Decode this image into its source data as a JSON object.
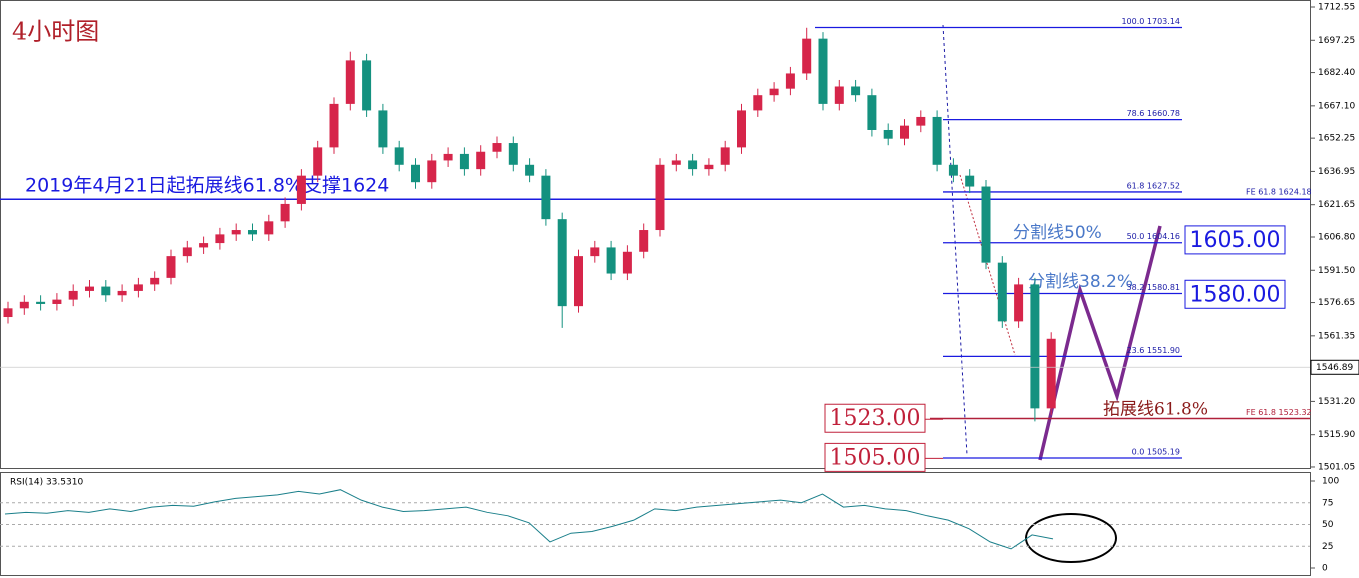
{
  "chart_data": {
    "type": "candlestick",
    "title": "4小时图",
    "up_color": "#d6254a",
    "down_color": "#14917f",
    "open": [
      1570,
      1574,
      1577,
      1576,
      1578,
      1582,
      1584,
      1580,
      1582,
      1585,
      1588,
      1598,
      1602,
      1604,
      1608,
      1610,
      1608,
      1614,
      1622,
      1635,
      1648,
      1668,
      1688,
      1665,
      1648,
      1640,
      1632,
      1642,
      1645,
      1638,
      1646,
      1650,
      1640,
      1635,
      1615,
      1575,
      1598,
      1602,
      1590,
      1600,
      1610,
      1640,
      1642,
      1638,
      1640,
      1648,
      1665,
      1672,
      1675,
      1682,
      1698,
      1668,
      1676,
      1672,
      1656,
      1652,
      1658,
      1662,
      1640,
      1635,
      1630,
      1595,
      1568,
      1585,
      1528
    ],
    "high": [
      1577,
      1580,
      1580,
      1581,
      1585,
      1587,
      1587,
      1585,
      1588,
      1591,
      1601,
      1605,
      1607,
      1611,
      1613,
      1613,
      1617,
      1625,
      1638,
      1651,
      1671,
      1692,
      1691,
      1668,
      1651,
      1643,
      1645,
      1648,
      1648,
      1649,
      1653,
      1653,
      1643,
      1638,
      1618,
      1601,
      1605,
      1605,
      1603,
      1613,
      1643,
      1645,
      1645,
      1643,
      1651,
      1668,
      1675,
      1678,
      1685,
      1703,
      1701,
      1679,
      1679,
      1675,
      1659,
      1661,
      1665,
      1665,
      1643,
      1638,
      1633,
      1598,
      1588,
      1588,
      1563
    ],
    "low": [
      1567,
      1571,
      1573,
      1573,
      1575,
      1579,
      1577,
      1577,
      1579,
      1582,
      1585,
      1595,
      1599,
      1601,
      1605,
      1605,
      1605,
      1611,
      1619,
      1632,
      1645,
      1665,
      1662,
      1645,
      1637,
      1629,
      1629,
      1639,
      1635,
      1635,
      1643,
      1637,
      1632,
      1612,
      1565,
      1572,
      1595,
      1587,
      1587,
      1597,
      1607,
      1637,
      1635,
      1635,
      1637,
      1645,
      1662,
      1669,
      1672,
      1679,
      1665,
      1665,
      1669,
      1653,
      1649,
      1649,
      1655,
      1637,
      1632,
      1627,
      1592,
      1565,
      1565,
      1522,
      1525
    ],
    "close": [
      1574,
      1577,
      1576,
      1578,
      1582,
      1584,
      1580,
      1582,
      1585,
      1588,
      1598,
      1602,
      1604,
      1608,
      1610,
      1608,
      1614,
      1622,
      1635,
      1648,
      1668,
      1688,
      1665,
      1648,
      1640,
      1632,
      1642,
      1645,
      1638,
      1646,
      1650,
      1640,
      1635,
      1615,
      1575,
      1598,
      1602,
      1590,
      1600,
      1610,
      1640,
      1642,
      1638,
      1640,
      1648,
      1665,
      1672,
      1675,
      1682,
      1698,
      1668,
      1676,
      1672,
      1656,
      1652,
      1658,
      1662,
      1640,
      1635,
      1630,
      1595,
      1568,
      1585,
      1528,
      1560
    ],
    "ylim": [
      1500.12,
      1715.77
    ],
    "yticks": [
      {
        "value": 1712.55,
        "label": "1712.55"
      },
      {
        "value": 1697.25,
        "label": "1697.25"
      },
      {
        "value": 1682.4,
        "label": "1682.40"
      },
      {
        "value": 1667.1,
        "label": "1667.10"
      },
      {
        "value": 1652.25,
        "label": "1652.25"
      },
      {
        "value": 1636.95,
        "label": "1636.95"
      },
      {
        "value": 1621.65,
        "label": "1621.65"
      },
      {
        "value": 1606.8,
        "label": "1606.80"
      },
      {
        "value": 1591.5,
        "label": "1591.50"
      },
      {
        "value": 1576.65,
        "label": "1576.65"
      },
      {
        "value": 1561.35,
        "label": "1561.35"
      },
      {
        "value": 1531.2,
        "label": "1531.20"
      },
      {
        "value": 1515.9,
        "label": "1515.90"
      },
      {
        "value": 1501.05,
        "label": "1501.05"
      }
    ],
    "last_price": 1546.89,
    "fib_levels": [
      {
        "value": 1703.14,
        "label": "100.0 1703.14"
      },
      {
        "value": 1660.78,
        "label": "78.6 1660.78"
      },
      {
        "value": 1627.52,
        "label": "61.8 1627.52"
      },
      {
        "value": 1604.16,
        "label": "50.0 1604.16"
      },
      {
        "value": 1580.81,
        "label": "38.2 1580.81"
      },
      {
        "value": 1551.9,
        "label": "23.6 1551.90"
      },
      {
        "value": 1505.19,
        "label": "0.0 1505.19"
      }
    ],
    "fe_support": {
      "value": 1624.18,
      "label": "FE 61.8 1624.18"
    },
    "fe_low": {
      "value": 1523.32,
      "label": "FE 61.8 1523.32"
    },
    "support_note": "2019年4月21日起拓展线61.8%支撑1624",
    "split_50": "分割线50%",
    "split_382": "分割线38.2%",
    "ext_note": "拓展线61.8%",
    "boxes": [
      {
        "value": 1605,
        "label": "1605.00"
      },
      {
        "value": 1580,
        "label": "1580.00"
      },
      {
        "value": 1523,
        "label": "1523.00"
      },
      {
        "value": 1505,
        "label": "1505.00"
      }
    ],
    "rsi": {
      "title": "RSI(14) 33.5310",
      "color": "#1a7f8a",
      "ylim": [
        0,
        100
      ],
      "yticks": [
        0,
        25,
        50,
        75,
        100
      ],
      "values": [
        62,
        64,
        63,
        66,
        64,
        68,
        65,
        70,
        72,
        71,
        76,
        80,
        82,
        84,
        88,
        85,
        90,
        78,
        70,
        65,
        66,
        68,
        70,
        64,
        60,
        52,
        30,
        40,
        42,
        48,
        55,
        68,
        66,
        70,
        72,
        74,
        76,
        78,
        75,
        85,
        70,
        72,
        68,
        66,
        60,
        55,
        45,
        30,
        22,
        38,
        33.531
      ]
    }
  }
}
